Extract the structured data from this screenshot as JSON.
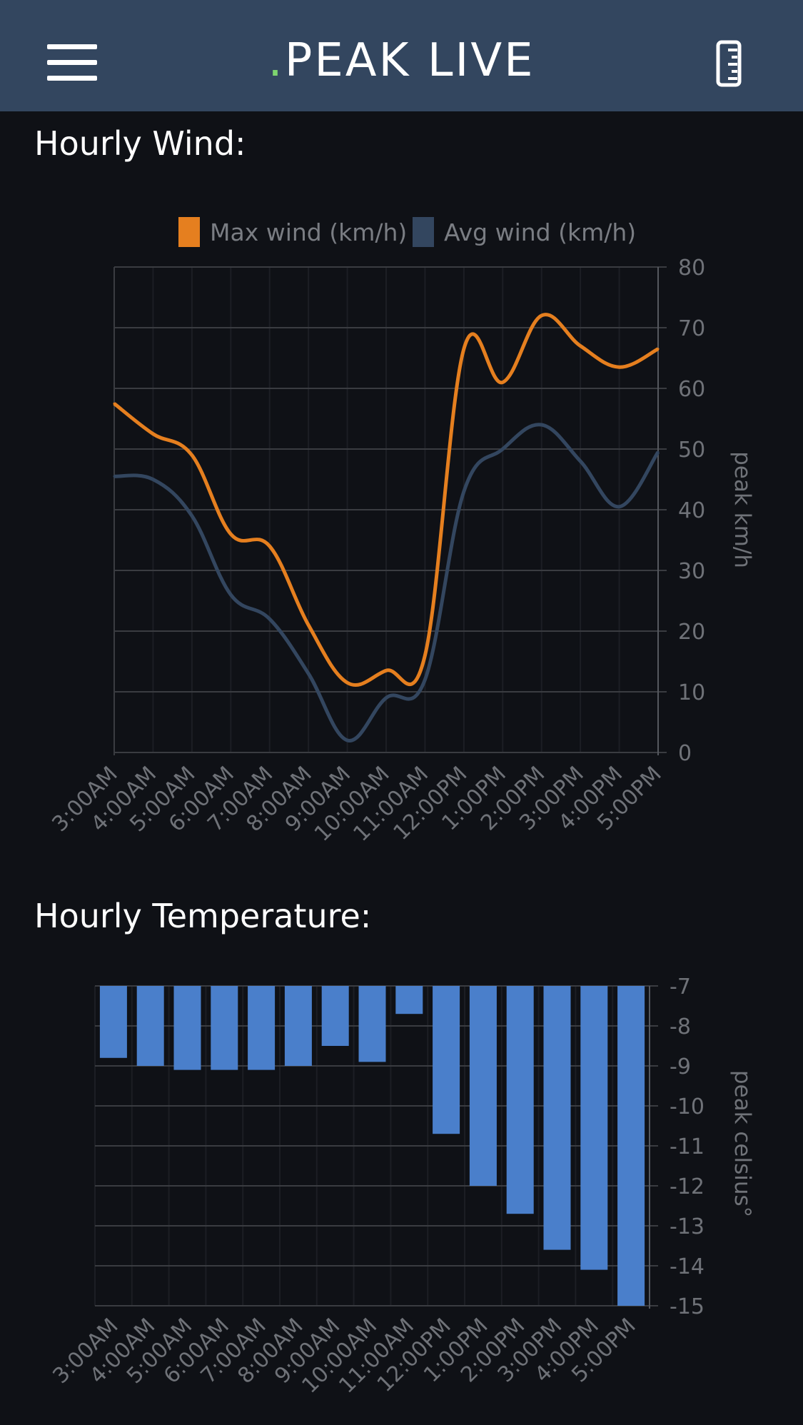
{
  "header": {
    "brand_dot": ".",
    "brand_text": "PEAK LIVE",
    "menu_icon": "hamburger-menu-icon",
    "right_icon": "ruler-icon"
  },
  "wind": {
    "title": "Hourly Wind:",
    "chart_data": {
      "type": "line",
      "categories": [
        "3:00AM",
        "4:00AM",
        "5:00AM",
        "6:00AM",
        "7:00AM",
        "8:00AM",
        "9:00AM",
        "10:00AM",
        "11:00AM",
        "12:00PM",
        "1:00PM",
        "2:00PM",
        "3:00PM",
        "4:00PM",
        "5:00PM"
      ],
      "series": [
        {
          "name": "Max wind (km/h)",
          "color": "#e57f1f",
          "values": [
            57.5,
            52.5,
            49,
            36,
            34,
            21,
            11.5,
            13.5,
            16,
            66.5,
            61,
            72,
            67,
            63.5,
            66.5
          ]
        },
        {
          "name": "Avg wind (km/h)",
          "color": "#33465f",
          "values": [
            45.5,
            45,
            39,
            26,
            22,
            13,
            2,
            9,
            12,
            43,
            50,
            54,
            48,
            40.5,
            49.5
          ]
        }
      ],
      "ylabel": "peak km/h",
      "ylim": [
        0,
        80
      ],
      "yticks": [
        "0",
        "10",
        "20",
        "30",
        "40",
        "50",
        "60",
        "70",
        "80"
      ],
      "legend": "top"
    }
  },
  "temperature": {
    "title": "Hourly Temperature:",
    "chart_data": {
      "type": "bar",
      "categories": [
        "3:00AM",
        "4:00AM",
        "5:00AM",
        "6:00AM",
        "7:00AM",
        "8:00AM",
        "9:00AM",
        "10:00AM",
        "11:00AM",
        "12:00PM",
        "1:00PM",
        "2:00PM",
        "3:00PM",
        "4:00PM",
        "5:00PM"
      ],
      "values": [
        -8.8,
        -9,
        -9.1,
        -9.1,
        -9.1,
        -9,
        -8.5,
        -8.9,
        -7.7,
        -10.7,
        -12,
        -12.7,
        -13.6,
        -14.1,
        -15
      ],
      "color": "#4a7fcb",
      "ylabel": "peak celsius°",
      "ylim": [
        -15,
        -7
      ],
      "yticks": [
        "-7",
        "-8",
        "-9",
        "-10",
        "-11",
        "-12",
        "-13",
        "-14",
        "-15"
      ]
    }
  }
}
